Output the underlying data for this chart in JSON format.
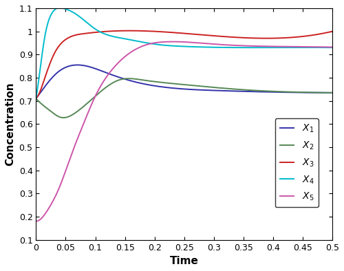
{
  "xlabel": "Time",
  "ylabel": "Concentration",
  "xlim": [
    0,
    0.5
  ],
  "ylim": [
    0.1,
    1.1
  ],
  "xticks": [
    0,
    0.05,
    0.1,
    0.15,
    0.2,
    0.25,
    0.3,
    0.35,
    0.4,
    0.45,
    0.5
  ],
  "yticks": [
    0.1,
    0.2,
    0.3,
    0.4,
    0.5,
    0.6,
    0.7,
    0.8,
    0.9,
    1.0,
    1.1
  ],
  "colors": {
    "X1": "#3333AA",
    "X2": "#558855",
    "X3": "#CC2222",
    "X4": "#00BBCC",
    "X5": "#CC55AA"
  },
  "legend_labels": [
    "$X_1$",
    "$X_2$",
    "$X_3$",
    "$X_4$",
    "$X_5$"
  ],
  "figsize": [
    5.0,
    3.94
  ],
  "dpi": 100,
  "linewidth": 1.4
}
